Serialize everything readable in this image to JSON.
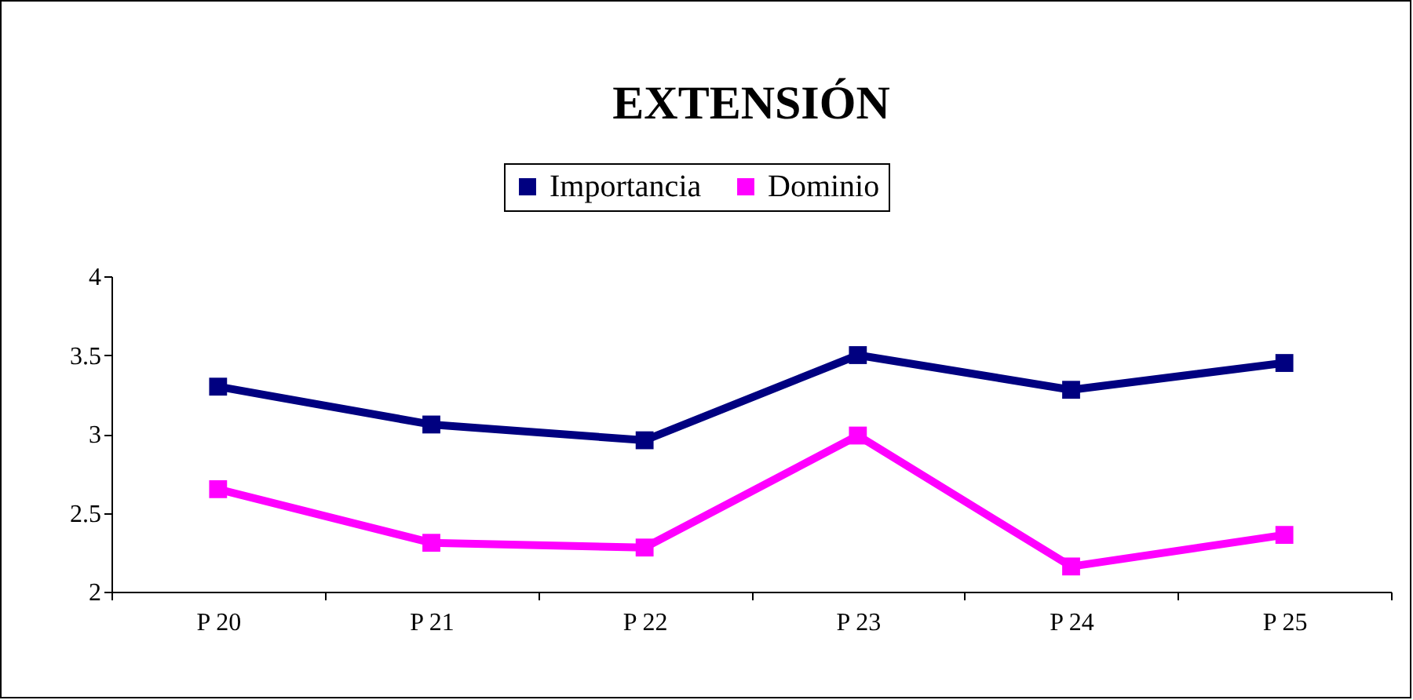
{
  "chart_data": {
    "type": "line",
    "title": "EXTENSIÓN",
    "categories": [
      "P 20",
      "P 21",
      "P 22",
      "P 23",
      "P 24",
      "P 25"
    ],
    "series": [
      {
        "name": "Importancia",
        "color": "#000080",
        "values": [
          3.3,
          3.06,
          2.96,
          3.5,
          3.28,
          3.45
        ]
      },
      {
        "name": "Dominio",
        "color": "#ff00ff",
        "values": [
          2.65,
          2.31,
          2.28,
          2.99,
          2.16,
          2.36
        ]
      }
    ],
    "ylim": [
      2,
      4
    ],
    "yticks": [
      2,
      2.5,
      3,
      3.5,
      4
    ],
    "legend": "top",
    "marker": "square",
    "line_style": "solid"
  }
}
